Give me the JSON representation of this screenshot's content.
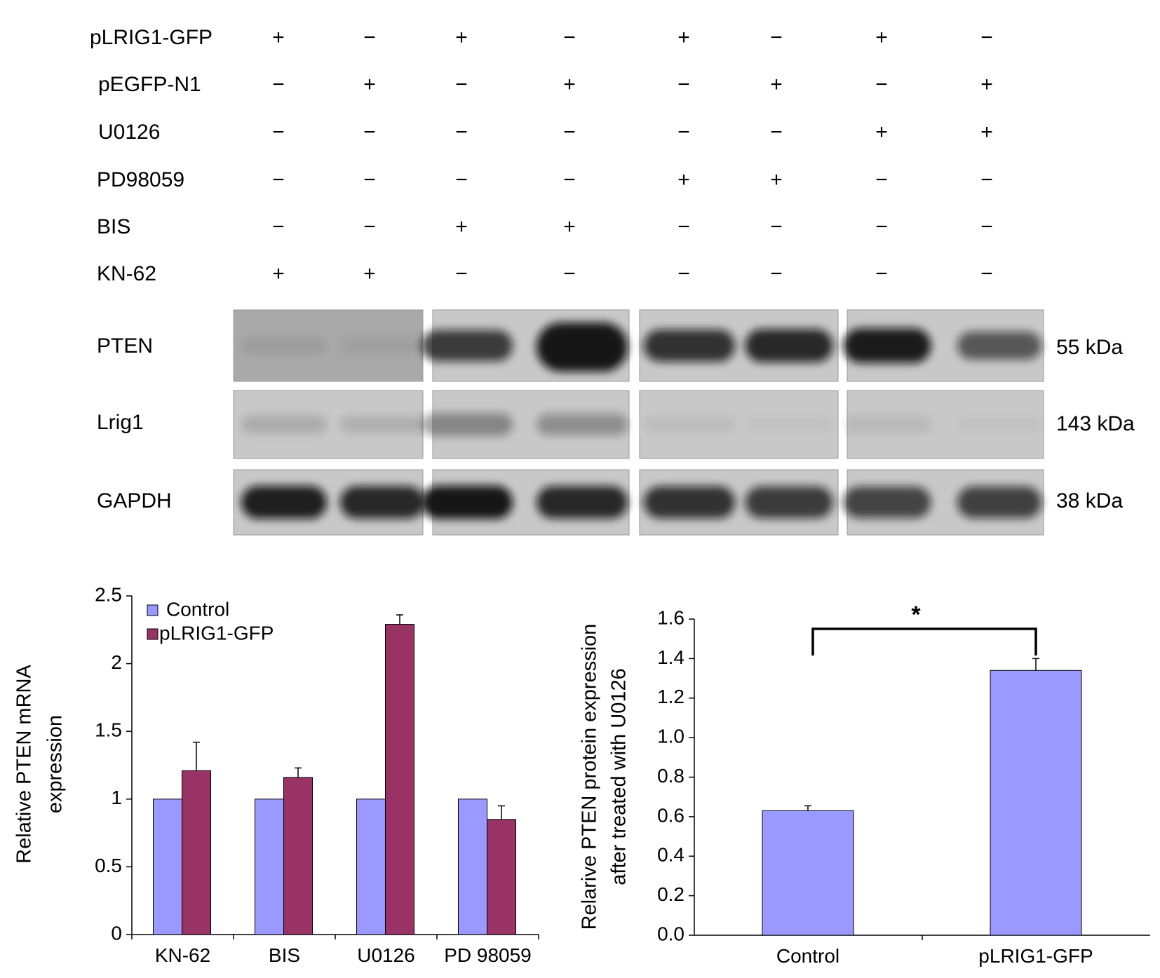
{
  "western_blot": {
    "treatments": [
      {
        "label": "pLRIG1-GFP",
        "signs": [
          "+",
          "−",
          "+",
          "−",
          "+",
          "−",
          "+",
          "−"
        ]
      },
      {
        "label": "pEGFP-N1",
        "signs": [
          "−",
          "+",
          "−",
          "+",
          "−",
          "+",
          "−",
          "+"
        ]
      },
      {
        "label": "U0126",
        "signs": [
          "−",
          "−",
          "−",
          "−",
          "−",
          "−",
          "+",
          "+"
        ]
      },
      {
        "label": "PD98059",
        "signs": [
          "−",
          "−",
          "−",
          "−",
          "+",
          "+",
          "−",
          "−"
        ]
      },
      {
        "label": "BIS",
        "signs": [
          "−",
          "−",
          "+",
          "+",
          "−",
          "−",
          "−",
          "−"
        ]
      },
      {
        "label": "KN-62",
        "signs": [
          "+",
          "+",
          "−",
          "−",
          "−",
          "−",
          "−",
          "−"
        ]
      }
    ],
    "blots": [
      {
        "label": "PTEN",
        "size": "55 kDa",
        "lane_intensity": [
          0.08,
          0.06,
          0.75,
          0.95,
          0.8,
          0.85,
          0.92,
          0.6
        ]
      },
      {
        "label": "Lrig1",
        "size": "143 kDa",
        "lane_intensity": [
          0.15,
          0.12,
          0.35,
          0.3,
          0.06,
          0.03,
          0.08,
          0.03
        ]
      },
      {
        "label": "GAPDH",
        "size": "38 kDa",
        "lane_intensity": [
          0.9,
          0.85,
          0.95,
          0.85,
          0.8,
          0.75,
          0.7,
          0.72
        ]
      }
    ],
    "colors": {
      "panel_bg": "#c8c8c8",
      "band": "#111111"
    }
  },
  "chart_data": [
    {
      "type": "bar",
      "categories": [
        "KN-62",
        "BIS",
        "U0126",
        "PD 98059"
      ],
      "series": [
        {
          "name": "Control",
          "values": [
            1.0,
            1.0,
            1.0,
            1.0
          ],
          "errors": [
            0,
            0,
            0,
            0
          ],
          "color": "#9999ff"
        },
        {
          "name": "pLRIG1-GFP",
          "values": [
            1.21,
            1.16,
            2.29,
            0.85
          ],
          "errors": [
            0.21,
            0.07,
            0.07,
            0.1
          ],
          "color": "#993366"
        }
      ],
      "ylabel": [
        "Relative PTEN mRNA",
        "expression"
      ],
      "ylim": [
        0,
        2.5
      ],
      "yticks": [
        "0",
        "0.5",
        "1",
        "1.5",
        "2",
        "2.5"
      ],
      "legend": "top-left",
      "grid": false
    },
    {
      "type": "bar",
      "categories": [
        "Control",
        "pLRIG1-GFP"
      ],
      "values": [
        0.63,
        1.34
      ],
      "errors": [
        0.025,
        0.06
      ],
      "color": "#9999ff",
      "ylabel": [
        "Relarive PTEN protein expression",
        "after treated with U0126"
      ],
      "ylim": [
        0,
        1.6
      ],
      "yticks": [
        "0.0",
        "0.2",
        "0.4",
        "0.6",
        "0.8",
        "1.0",
        "1.2",
        "1.4",
        "1.6"
      ],
      "significance": "*",
      "grid": false
    }
  ]
}
